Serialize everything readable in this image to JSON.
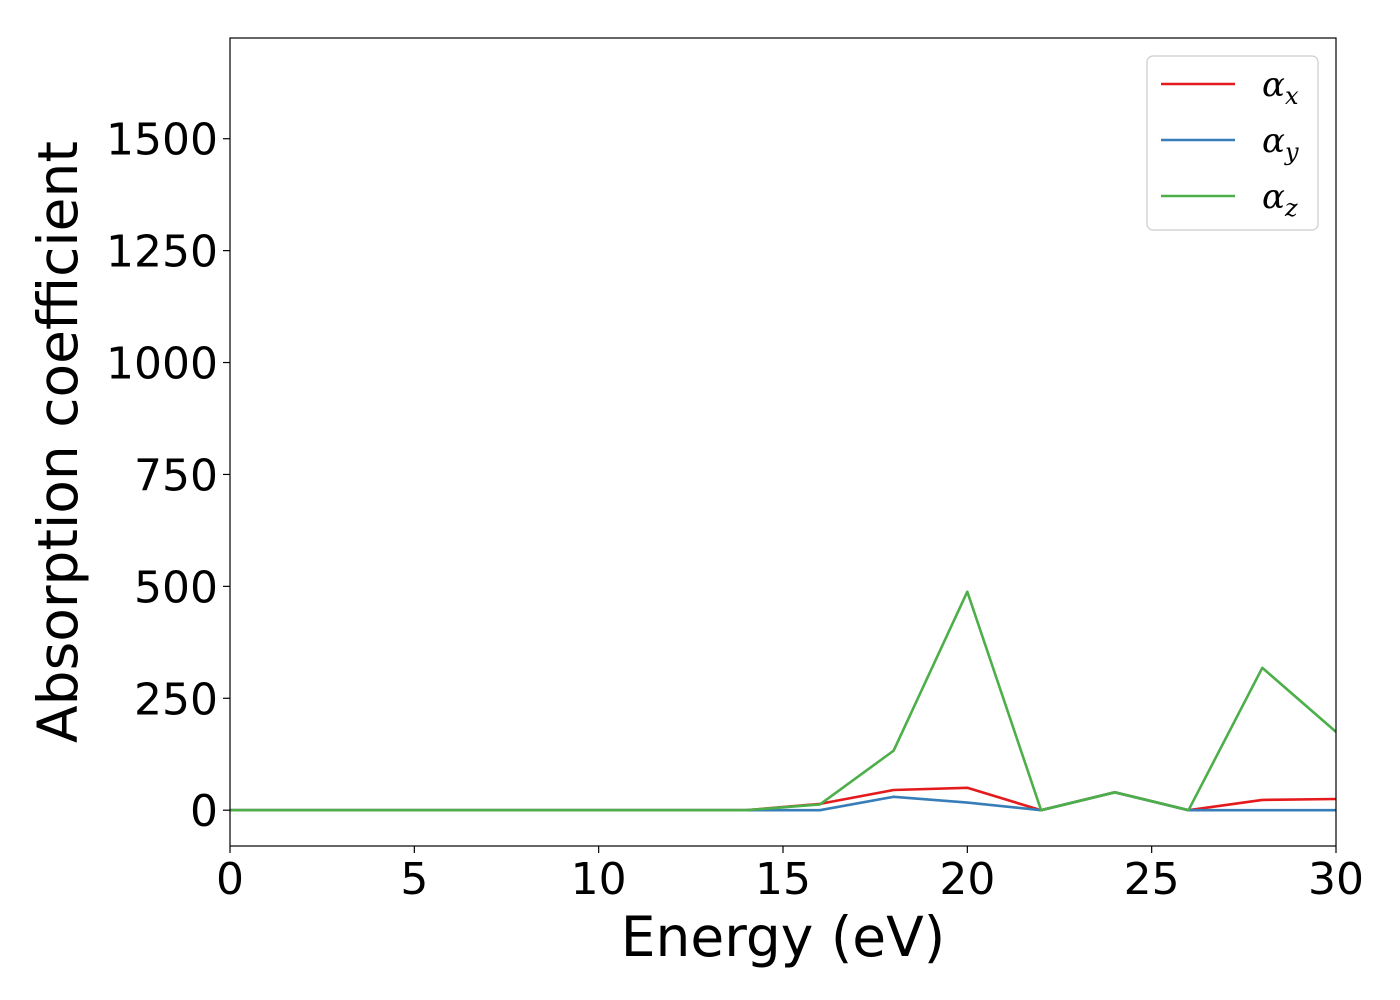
{
  "chart_data": {
    "type": "line",
    "title": "",
    "xlabel": "Energy (eV)",
    "ylabel": "Absorption coefficient",
    "xlim": [
      0,
      30
    ],
    "ylim": [
      -80,
      1725
    ],
    "xticks": [
      0,
      5,
      10,
      15,
      20,
      25,
      30
    ],
    "yticks": [
      0,
      250,
      500,
      750,
      1000,
      1250,
      1500
    ],
    "grid": false,
    "legend_position": "top-right",
    "x": [
      0,
      2,
      4,
      6,
      8,
      10,
      12,
      14,
      16,
      18,
      20,
      22,
      24,
      26,
      28,
      30
    ],
    "series": [
      {
        "name": "α",
        "subscript": "x",
        "color": "#e41a1c",
        "values": [
          0,
          0,
          0,
          0,
          0,
          0,
          0,
          0,
          14,
          45,
          50,
          0,
          40,
          0,
          23,
          25
        ]
      },
      {
        "name": "α",
        "subscript": "y",
        "color": "#377eb8",
        "values": [
          0,
          0,
          0,
          0,
          0,
          0,
          0,
          0,
          0,
          30,
          17,
          0,
          40,
          0,
          0,
          0
        ]
      },
      {
        "name": "α",
        "subscript": "z",
        "color": "#4daf4a",
        "values": [
          0,
          0,
          0,
          0,
          0,
          0,
          0,
          0,
          13,
          133,
          488,
          0,
          40,
          0,
          318,
          175
        ]
      }
    ]
  }
}
